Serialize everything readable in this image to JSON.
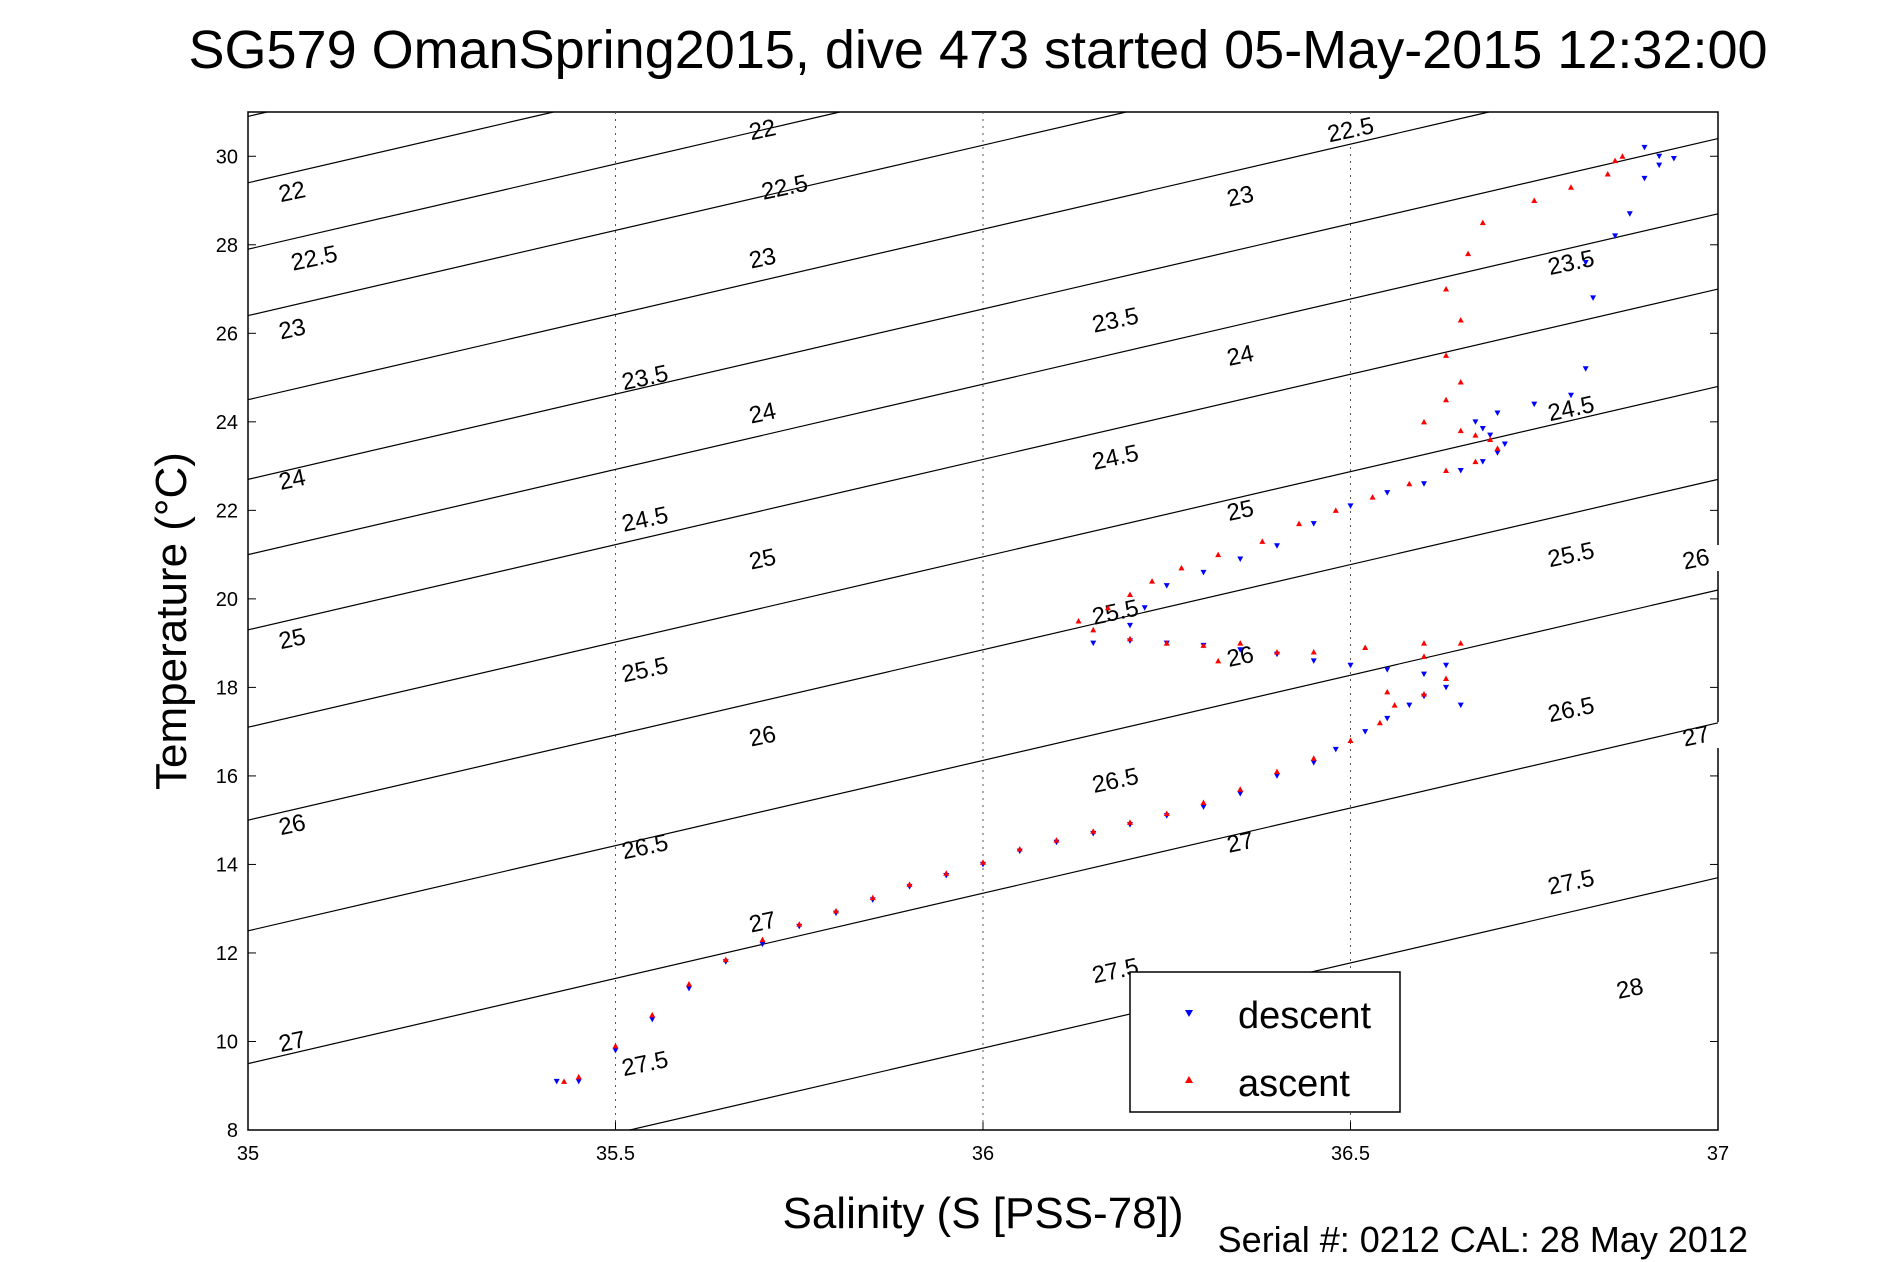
{
  "chart_data": {
    "type": "scatter",
    "title": "SG579 OmanSpring2015, dive 473 started 05-May-2015 12:32:00",
    "xlabel": "Salinity (S [PSS-78])",
    "ylabel": "Temperature (°C)",
    "footer": "Serial #: 0212  CAL: 28 May 2012",
    "xlim": [
      35,
      37
    ],
    "ylim": [
      8,
      31
    ],
    "xticks": [
      35,
      35.5,
      36,
      36.5,
      37
    ],
    "xtick_labels": [
      "35",
      "35.5",
      "36",
      "36.5",
      "37"
    ],
    "yticks": [
      8,
      10,
      12,
      14,
      16,
      18,
      20,
      22,
      24,
      26,
      28,
      30
    ],
    "ytick_labels": [
      "8",
      "10",
      "12",
      "14",
      "16",
      "18",
      "20",
      "22",
      "24",
      "26",
      "28",
      "30"
    ],
    "grid": "dotted at x ticks",
    "legend_position": "bottom-right",
    "series": [
      {
        "name": "descent",
        "color": "#0000ff",
        "marker": "down-triangle",
        "points": [
          [
            35.42,
            9.1
          ],
          [
            35.45,
            9.1
          ],
          [
            35.5,
            9.8
          ],
          [
            35.55,
            10.5
          ],
          [
            35.6,
            11.2
          ],
          [
            35.65,
            11.8
          ],
          [
            35.7,
            12.2
          ],
          [
            35.75,
            12.6
          ],
          [
            35.8,
            12.9
          ],
          [
            35.85,
            13.2
          ],
          [
            35.9,
            13.5
          ],
          [
            35.95,
            13.75
          ],
          [
            36.0,
            14.0
          ],
          [
            36.05,
            14.3
          ],
          [
            36.1,
            14.5
          ],
          [
            36.15,
            14.7
          ],
          [
            36.2,
            14.9
          ],
          [
            36.25,
            15.1
          ],
          [
            36.3,
            15.3
          ],
          [
            36.35,
            15.6
          ],
          [
            36.4,
            16.0
          ],
          [
            36.45,
            16.3
          ],
          [
            36.48,
            16.6
          ],
          [
            36.52,
            17.0
          ],
          [
            36.55,
            17.3
          ],
          [
            36.58,
            17.6
          ],
          [
            36.6,
            17.8
          ],
          [
            36.65,
            17.6
          ],
          [
            36.63,
            18.0
          ],
          [
            36.6,
            18.3
          ],
          [
            36.63,
            18.5
          ],
          [
            36.55,
            18.4
          ],
          [
            36.5,
            18.5
          ],
          [
            36.45,
            18.6
          ],
          [
            36.4,
            18.75
          ],
          [
            36.35,
            18.85
          ],
          [
            36.3,
            18.95
          ],
          [
            36.25,
            19.0
          ],
          [
            36.2,
            19.05
          ],
          [
            36.15,
            19.0
          ],
          [
            36.2,
            19.4
          ],
          [
            36.22,
            19.8
          ],
          [
            36.25,
            20.3
          ],
          [
            36.3,
            20.6
          ],
          [
            36.35,
            20.9
          ],
          [
            36.4,
            21.2
          ],
          [
            36.45,
            21.7
          ],
          [
            36.5,
            22.1
          ],
          [
            36.55,
            22.4
          ],
          [
            36.6,
            22.6
          ],
          [
            36.65,
            22.9
          ],
          [
            36.68,
            23.1
          ],
          [
            36.7,
            23.3
          ],
          [
            36.71,
            23.5
          ],
          [
            36.69,
            23.7
          ],
          [
            36.68,
            23.85
          ],
          [
            36.67,
            24.0
          ],
          [
            36.7,
            24.2
          ],
          [
            36.75,
            24.4
          ],
          [
            36.8,
            24.6
          ],
          [
            36.82,
            25.2
          ],
          [
            36.83,
            26.8
          ],
          [
            36.82,
            27.6
          ],
          [
            36.86,
            28.2
          ],
          [
            36.88,
            28.7
          ],
          [
            36.9,
            29.5
          ],
          [
            36.92,
            30.0
          ],
          [
            36.9,
            30.2
          ],
          [
            36.92,
            29.8
          ],
          [
            36.94,
            29.95
          ]
        ]
      },
      {
        "name": "ascent",
        "color": "#ff0000",
        "marker": "up-triangle",
        "points": [
          [
            35.43,
            9.1
          ],
          [
            35.45,
            9.2
          ],
          [
            35.5,
            9.9
          ],
          [
            35.55,
            10.6
          ],
          [
            35.6,
            11.3
          ],
          [
            35.65,
            11.85
          ],
          [
            35.7,
            12.3
          ],
          [
            35.75,
            12.65
          ],
          [
            35.8,
            12.95
          ],
          [
            35.85,
            13.25
          ],
          [
            35.9,
            13.55
          ],
          [
            35.95,
            13.8
          ],
          [
            36.0,
            14.05
          ],
          [
            36.05,
            14.35
          ],
          [
            36.1,
            14.55
          ],
          [
            36.15,
            14.75
          ],
          [
            36.2,
            14.95
          ],
          [
            36.25,
            15.15
          ],
          [
            36.3,
            15.4
          ],
          [
            36.35,
            15.7
          ],
          [
            36.4,
            16.1
          ],
          [
            36.45,
            16.4
          ],
          [
            36.5,
            16.8
          ],
          [
            36.54,
            17.2
          ],
          [
            36.56,
            17.6
          ],
          [
            36.55,
            17.9
          ],
          [
            36.6,
            17.85
          ],
          [
            36.63,
            18.2
          ],
          [
            36.6,
            18.7
          ],
          [
            36.65,
            19.0
          ],
          [
            36.6,
            19.0
          ],
          [
            36.52,
            18.9
          ],
          [
            36.45,
            18.8
          ],
          [
            36.4,
            18.8
          ],
          [
            36.35,
            19.0
          ],
          [
            36.3,
            18.95
          ],
          [
            36.32,
            18.6
          ],
          [
            36.25,
            19.0
          ],
          [
            36.2,
            19.1
          ],
          [
            36.15,
            19.3
          ],
          [
            36.13,
            19.5
          ],
          [
            36.17,
            19.8
          ],
          [
            36.2,
            20.1
          ],
          [
            36.23,
            20.4
          ],
          [
            36.27,
            20.7
          ],
          [
            36.32,
            21.0
          ],
          [
            36.38,
            21.3
          ],
          [
            36.43,
            21.7
          ],
          [
            36.48,
            22.0
          ],
          [
            36.53,
            22.3
          ],
          [
            36.58,
            22.6
          ],
          [
            36.63,
            22.9
          ],
          [
            36.67,
            23.1
          ],
          [
            36.7,
            23.4
          ],
          [
            36.69,
            23.6
          ],
          [
            36.67,
            23.7
          ],
          [
            36.65,
            23.8
          ],
          [
            36.6,
            24.0
          ],
          [
            36.63,
            24.5
          ],
          [
            36.65,
            24.9
          ],
          [
            36.63,
            25.5
          ],
          [
            36.65,
            26.3
          ],
          [
            36.63,
            27.0
          ],
          [
            36.66,
            27.8
          ],
          [
            36.68,
            28.5
          ],
          [
            36.75,
            29.0
          ],
          [
            36.8,
            29.3
          ],
          [
            36.85,
            29.6
          ],
          [
            36.87,
            30.0
          ],
          [
            36.86,
            29.9
          ]
        ]
      }
    ],
    "isopycnals": [
      {
        "label": "22",
        "t_at_s35": 30.9,
        "label_positions": [
          [
            35.06,
            29.2
          ],
          [
            35.7,
            30.6
          ]
        ]
      },
      {
        "label": "22.5",
        "t_at_s35": 29.4,
        "label_positions": [
          [
            35.09,
            27.7
          ],
          [
            35.73,
            29.3
          ],
          [
            36.5,
            30.6
          ]
        ]
      },
      {
        "label": "23",
        "t_at_s35": 27.9,
        "label_positions": [
          [
            35.06,
            26.1
          ],
          [
            35.7,
            27.7
          ],
          [
            36.35,
            29.1
          ]
        ]
      },
      {
        "label": "23.5",
        "t_at_s35": 26.4,
        "label_positions": [
          [
            35.54,
            25.0
          ],
          [
            36.18,
            26.3
          ],
          [
            36.8,
            27.6
          ]
        ]
      },
      {
        "label": "24",
        "t_at_s35": 24.5,
        "label_positions": [
          [
            35.06,
            22.7
          ],
          [
            35.7,
            24.2
          ],
          [
            36.35,
            25.5
          ]
        ]
      },
      {
        "label": "24.5",
        "t_at_s35": 22.7,
        "label_positions": [
          [
            35.54,
            21.8
          ],
          [
            36.18,
            23.2
          ],
          [
            36.8,
            24.3
          ]
        ]
      },
      {
        "label": "25",
        "t_at_s35": 21.0,
        "label_positions": [
          [
            35.06,
            19.1
          ],
          [
            35.7,
            20.9
          ],
          [
            36.35,
            22.0
          ]
        ]
      },
      {
        "label": "25.5",
        "t_at_s35": 19.3,
        "label_positions": [
          [
            35.54,
            18.4
          ],
          [
            36.18,
            19.7
          ],
          [
            36.8,
            21.0
          ]
        ]
      },
      {
        "label": "26",
        "t_at_s35": 17.1,
        "label_positions": [
          [
            35.06,
            14.9
          ],
          [
            35.7,
            16.9
          ],
          [
            36.35,
            18.7
          ],
          [
            36.97,
            20.9
          ]
        ]
      },
      {
        "label": "26.5",
        "t_at_s35": 15.0,
        "label_positions": [
          [
            35.54,
            14.4
          ],
          [
            36.18,
            15.9
          ],
          [
            36.8,
            17.5
          ]
        ]
      },
      {
        "label": "27",
        "t_at_s35": 12.5,
        "label_positions": [
          [
            35.06,
            10.0
          ],
          [
            35.7,
            12.7
          ],
          [
            36.35,
            14.5
          ],
          [
            36.97,
            16.9
          ]
        ]
      },
      {
        "label": "27.5",
        "t_at_s35": 9.5,
        "label_positions": [
          [
            35.54,
            9.5
          ],
          [
            36.18,
            11.6
          ],
          [
            36.8,
            13.6
          ]
        ]
      },
      {
        "label": "28",
        "t_at_s35": 6.0,
        "label_positions": [
          [
            36.88,
            11.2
          ]
        ]
      }
    ]
  }
}
